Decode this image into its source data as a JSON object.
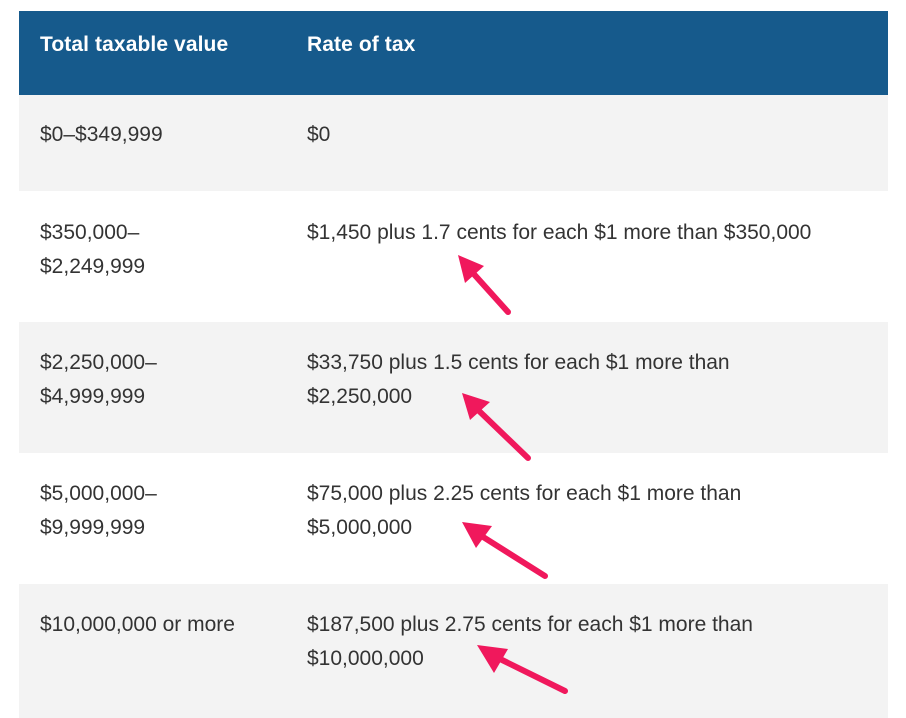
{
  "table": {
    "headers": [
      "Total taxable value",
      "Rate of tax"
    ],
    "rows": [
      {
        "value_line1": "$0–$349,999",
        "value_line2": "",
        "rate_line1": "$0",
        "rate_line2": ""
      },
      {
        "value_line1": "$350,000–",
        "value_line2": "$2,249,999",
        "rate_line1": "$1,450 plus 1.7 cents for each $1 more than $350,000",
        "rate_line2": ""
      },
      {
        "value_line1": "$2,250,000–",
        "value_line2": "$4,999,999",
        "rate_line1": "$33,750 plus 1.5 cents for each $1 more than",
        "rate_line2": "$2,250,000"
      },
      {
        "value_line1": "$5,000,000–",
        "value_line2": "$9,999,999",
        "rate_line1": "$75,000 plus 2.25 cents for each $1 more than",
        "rate_line2": "$5,000,000"
      },
      {
        "value_line1": "$10,000,000 or more",
        "value_line2": "",
        "rate_line1": "$187,500 plus 2.75 cents for each $1 more than",
        "rate_line2": "$10,000,000"
      }
    ]
  },
  "colors": {
    "header_bg": "#165a8c",
    "shaded_row_bg": "#f3f3f3",
    "arrow": "#f0185c"
  }
}
